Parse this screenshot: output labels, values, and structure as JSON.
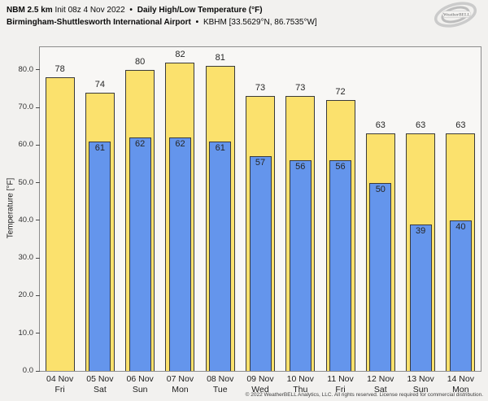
{
  "header": {
    "model": "NBM 2.5 km",
    "init": "Init 08z 4 Nov 2022",
    "sep": "•",
    "product": "Daily High/Low Temperature (°F)",
    "station_name": "Birmingham-Shuttlesworth International Airport",
    "station_meta": "KBHM [33.5629°N, 86.7535°W]"
  },
  "logo": {
    "brand": "WeatherBELL"
  },
  "footer": {
    "copyright": "© 2022 WeatherBELL Analytics, LLC. All rights reserved. License required for commercial distribution."
  },
  "chart_data": {
    "type": "bar",
    "title": "NBM 2.5 km Init 08z 4 Nov 2022 • Daily High/Low Temperature (°F) — Birmingham-Shuttlesworth International Airport (KBHM)",
    "ylabel": "Temperature [°F]",
    "xlabel": "",
    "ylim": [
      0,
      86
    ],
    "yticks": [
      0,
      10,
      20,
      30,
      40,
      50,
      60,
      70,
      80
    ],
    "ytick_labels": [
      "0.0",
      "10.0",
      "20.0",
      "30.0",
      "40.0",
      "50.0",
      "60.0",
      "70.0",
      "80.0"
    ],
    "grid": false,
    "legend": "none",
    "categories": [
      {
        "date": "04 Nov",
        "day": "Fri"
      },
      {
        "date": "05 Nov",
        "day": "Sat"
      },
      {
        "date": "06 Nov",
        "day": "Sun"
      },
      {
        "date": "07 Nov",
        "day": "Mon"
      },
      {
        "date": "08 Nov",
        "day": "Tue"
      },
      {
        "date": "09 Nov",
        "day": "Wed"
      },
      {
        "date": "10 Nov",
        "day": "Thu"
      },
      {
        "date": "11 Nov",
        "day": "Fri"
      },
      {
        "date": "12 Nov",
        "day": "Sat"
      },
      {
        "date": "13 Nov",
        "day": "Sun"
      },
      {
        "date": "14 Nov",
        "day": "Mon"
      }
    ],
    "series": [
      {
        "name": "Daily High",
        "color": "#FBE16D",
        "edge_color": "#3a3a3a",
        "values": [
          78,
          74,
          80,
          82,
          81,
          73,
          73,
          72,
          63,
          63,
          63
        ]
      },
      {
        "name": "Daily Low",
        "color": "#6495EC",
        "edge_color": "#3a3a3a",
        "values": [
          null,
          61,
          62,
          62,
          61,
          57,
          56,
          56,
          50,
          39,
          40
        ]
      }
    ]
  }
}
